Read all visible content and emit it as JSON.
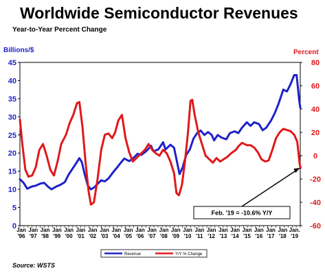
{
  "chart_data": {
    "type": "line",
    "title": "Worldwide Semiconductor Revenues",
    "subtitle": "Year-to-Year Percent Change",
    "left_axis_title": "Billions/$",
    "right_axis_title": "Percent",
    "source": "Source: WSTS",
    "left_ylim": [
      0,
      45
    ],
    "right_ylim": [
      -60,
      80
    ],
    "left_ticks": [
      0,
      5,
      10,
      15,
      20,
      25,
      30,
      35,
      40,
      45
    ],
    "right_ticks": [
      -60,
      -40,
      -20,
      0,
      20,
      40,
      60,
      80
    ],
    "x_categories": [
      {
        "top": "Jan",
        "bottom": "'96"
      },
      {
        "top": "Jan",
        "bottom": "'97"
      },
      {
        "top": "Jan",
        "bottom": "'98"
      },
      {
        "top": "Jan",
        "bottom": "'99"
      },
      {
        "top": "Jan",
        "bottom": "'00"
      },
      {
        "top": "Jan",
        "bottom": "'01"
      },
      {
        "top": "Jan",
        "bottom": "'02"
      },
      {
        "top": "Jan",
        "bottom": "'03"
      },
      {
        "top": "Jan",
        "bottom": "'04"
      },
      {
        "top": "Jan",
        "bottom": "'05"
      },
      {
        "top": "Jan",
        "bottom": "'06"
      },
      {
        "top": "Jan",
        "bottom": "'07"
      },
      {
        "top": "Jan",
        "bottom": "'08"
      },
      {
        "top": "Jan",
        "bottom": "'09"
      },
      {
        "top": "Jan",
        "bottom": "'10"
      },
      {
        "top": "Jan",
        "bottom": "'11"
      },
      {
        "top": "Jan",
        "bottom": "'12"
      },
      {
        "top": "Jan",
        "bottom": "'13"
      },
      {
        "top": "Jan",
        "bottom": "'14"
      },
      {
        "top": "Jan",
        "bottom": "'15"
      },
      {
        "top": "Jan",
        "bottom": "'16"
      },
      {
        "top": "Jan",
        "bottom": "'17"
      },
      {
        "top": "Jan",
        "bottom": "'18"
      },
      {
        "top": "Jan.",
        "bottom": "'19"
      }
    ],
    "x_range": [
      1996.0,
      2019.1
    ],
    "series": [
      {
        "name": "Revenue",
        "axis": "left",
        "color": "#1e22c8",
        "points": [
          [
            1996.0,
            12.8
          ],
          [
            1996.3,
            11.8
          ],
          [
            1996.6,
            10.2
          ],
          [
            1997.0,
            10.8
          ],
          [
            1997.3,
            11.0
          ],
          [
            1997.7,
            11.6
          ],
          [
            1998.0,
            11.8
          ],
          [
            1998.3,
            10.8
          ],
          [
            1998.6,
            10.0
          ],
          [
            1999.0,
            10.8
          ],
          [
            1999.3,
            11.2
          ],
          [
            1999.7,
            12.0
          ],
          [
            2000.0,
            14.0
          ],
          [
            2000.3,
            15.5
          ],
          [
            2000.6,
            17.0
          ],
          [
            2000.9,
            18.6
          ],
          [
            2001.1,
            17.5
          ],
          [
            2001.35,
            14.0
          ],
          [
            2001.6,
            11.0
          ],
          [
            2001.85,
            10.0
          ],
          [
            2002.1,
            10.5
          ],
          [
            2002.4,
            11.5
          ],
          [
            2002.7,
            12.5
          ],
          [
            2003.0,
            12.2
          ],
          [
            2003.3,
            13.0
          ],
          [
            2003.7,
            14.8
          ],
          [
            2004.0,
            16.0
          ],
          [
            2004.3,
            17.3
          ],
          [
            2004.6,
            18.5
          ],
          [
            2005.0,
            17.8
          ],
          [
            2005.3,
            18.5
          ],
          [
            2005.7,
            19.8
          ],
          [
            2006.0,
            19.5
          ],
          [
            2006.4,
            20.5
          ],
          [
            2006.8,
            22.0
          ],
          [
            2007.0,
            20.5
          ],
          [
            2007.4,
            21.0
          ],
          [
            2007.8,
            23.0
          ],
          [
            2008.0,
            21.0
          ],
          [
            2008.4,
            22.3
          ],
          [
            2008.7,
            21.5
          ],
          [
            2008.95,
            17.5
          ],
          [
            2009.15,
            14.2
          ],
          [
            2009.4,
            16.0
          ],
          [
            2009.7,
            19.5
          ],
          [
            2010.0,
            21.0
          ],
          [
            2010.3,
            24.0
          ],
          [
            2010.6,
            25.5
          ],
          [
            2010.9,
            26.2
          ],
          [
            2011.2,
            25.0
          ],
          [
            2011.5,
            25.8
          ],
          [
            2011.8,
            25.0
          ],
          [
            2012.0,
            23.5
          ],
          [
            2012.3,
            25.0
          ],
          [
            2012.6,
            24.3
          ],
          [
            2013.0,
            23.8
          ],
          [
            2013.3,
            25.5
          ],
          [
            2013.7,
            26.0
          ],
          [
            2014.0,
            25.5
          ],
          [
            2014.3,
            27.0
          ],
          [
            2014.7,
            28.5
          ],
          [
            2015.0,
            27.5
          ],
          [
            2015.3,
            28.5
          ],
          [
            2015.7,
            28.0
          ],
          [
            2016.0,
            26.3
          ],
          [
            2016.3,
            27.0
          ],
          [
            2016.7,
            29.0
          ],
          [
            2017.0,
            31.0
          ],
          [
            2017.3,
            33.5
          ],
          [
            2017.7,
            37.5
          ],
          [
            2018.0,
            37.0
          ],
          [
            2018.3,
            39.0
          ],
          [
            2018.6,
            41.5
          ],
          [
            2018.8,
            41.5
          ],
          [
            2019.0,
            35.0
          ],
          [
            2019.1,
            32.5
          ]
        ]
      },
      {
        "name": "Y/Y % Change",
        "axis": "right",
        "color": "#e0181a",
        "points": [
          [
            1996.0,
            31.0
          ],
          [
            1996.2,
            10.0
          ],
          [
            1996.45,
            -12.0
          ],
          [
            1996.7,
            -18.0
          ],
          [
            1997.0,
            -17.0
          ],
          [
            1997.3,
            -10.0
          ],
          [
            1997.6,
            5.0
          ],
          [
            1997.9,
            10.0
          ],
          [
            1998.2,
            0.0
          ],
          [
            1998.5,
            -12.0
          ],
          [
            1998.8,
            -17.0
          ],
          [
            1999.1,
            -5.0
          ],
          [
            1999.4,
            10.0
          ],
          [
            1999.8,
            18.0
          ],
          [
            2000.1,
            28.0
          ],
          [
            2000.4,
            35.0
          ],
          [
            2000.7,
            45.0
          ],
          [
            2000.9,
            46.0
          ],
          [
            2001.15,
            25.0
          ],
          [
            2001.4,
            -5.0
          ],
          [
            2001.65,
            -30.0
          ],
          [
            2001.85,
            -42.0
          ],
          [
            2002.1,
            -40.0
          ],
          [
            2002.4,
            -20.0
          ],
          [
            2002.7,
            5.0
          ],
          [
            2003.0,
            18.0
          ],
          [
            2003.3,
            19.0
          ],
          [
            2003.6,
            15.0
          ],
          [
            2003.85,
            20.0
          ],
          [
            2004.1,
            30.0
          ],
          [
            2004.4,
            35.0
          ],
          [
            2004.7,
            15.0
          ],
          [
            2005.0,
            3.0
          ],
          [
            2005.3,
            -5.0
          ],
          [
            2005.6,
            -2.0
          ],
          [
            2006.0,
            2.0
          ],
          [
            2006.3,
            5.0
          ],
          [
            2006.6,
            10.0
          ],
          [
            2006.9,
            5.0
          ],
          [
            2007.2,
            2.0
          ],
          [
            2007.5,
            0.0
          ],
          [
            2007.8,
            5.0
          ],
          [
            2008.1,
            2.0
          ],
          [
            2008.4,
            -5.0
          ],
          [
            2008.7,
            -15.0
          ],
          [
            2008.9,
            -32.0
          ],
          [
            2009.1,
            -34.0
          ],
          [
            2009.35,
            -25.0
          ],
          [
            2009.6,
            -5.0
          ],
          [
            2009.85,
            20.0
          ],
          [
            2010.05,
            47.0
          ],
          [
            2010.2,
            48.0
          ],
          [
            2010.4,
            35.0
          ],
          [
            2010.7,
            20.0
          ],
          [
            2011.0,
            10.0
          ],
          [
            2011.3,
            0.0
          ],
          [
            2011.6,
            -3.0
          ],
          [
            2011.9,
            -6.0
          ],
          [
            2012.2,
            -2.0
          ],
          [
            2012.5,
            -5.0
          ],
          [
            2012.8,
            -3.0
          ],
          [
            2013.1,
            -1.0
          ],
          [
            2013.4,
            2.0
          ],
          [
            2013.8,
            5.0
          ],
          [
            2014.0,
            8.0
          ],
          [
            2014.3,
            11.0
          ],
          [
            2014.7,
            9.0
          ],
          [
            2015.0,
            9.0
          ],
          [
            2015.3,
            7.0
          ],
          [
            2015.6,
            3.0
          ],
          [
            2015.9,
            -3.0
          ],
          [
            2016.2,
            -5.0
          ],
          [
            2016.5,
            -4.0
          ],
          [
            2016.8,
            5.0
          ],
          [
            2017.1,
            15.0
          ],
          [
            2017.4,
            20.0
          ],
          [
            2017.7,
            23.0
          ],
          [
            2018.0,
            22.0
          ],
          [
            2018.3,
            21.0
          ],
          [
            2018.6,
            18.0
          ],
          [
            2018.85,
            12.0
          ],
          [
            2019.05,
            -7.0
          ],
          [
            2019.12,
            -10.6
          ]
        ]
      }
    ],
    "legend": [
      {
        "label": "Revenue",
        "color": "#1e22c8"
      },
      {
        "label": "Y/Y % Change",
        "color": "#e0181a"
      }
    ],
    "annotation": {
      "text": "Feb. '19 = -10.6% Y/Y",
      "x": 2019.12,
      "y_right": -10.6
    }
  }
}
